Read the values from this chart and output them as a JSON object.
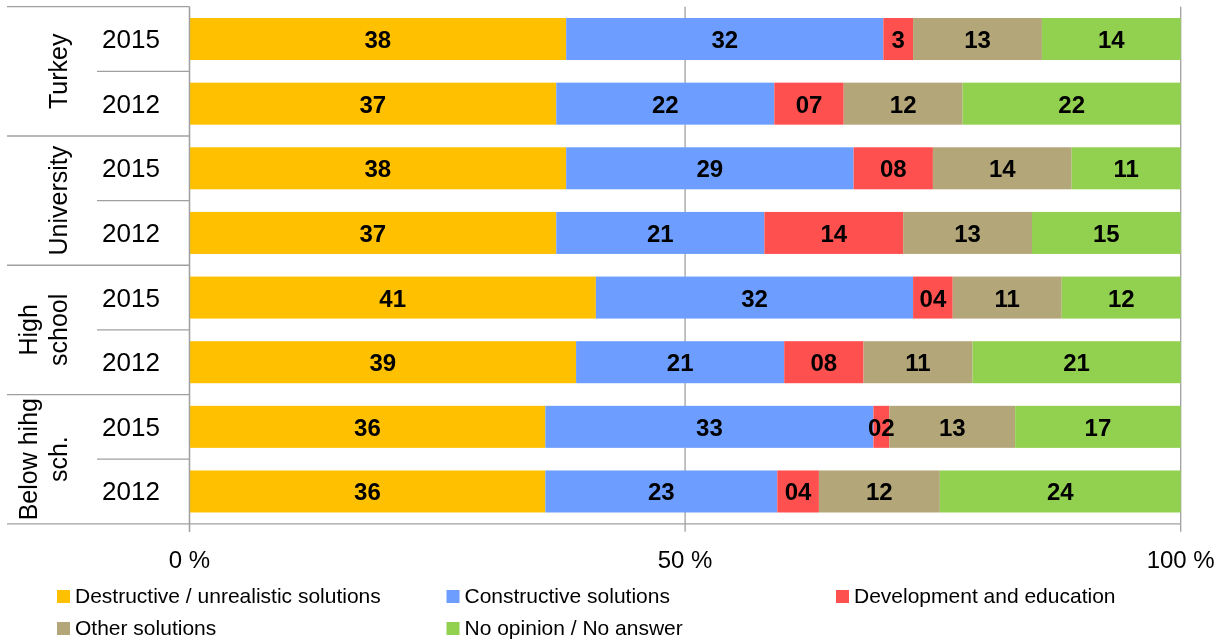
{
  "chart_data": {
    "type": "bar",
    "orientation": "horizontal",
    "stacked": true,
    "categories": [
      "2015",
      "2012",
      "2015",
      "2012",
      "2015",
      "2012",
      "2015",
      "2012"
    ],
    "annotations": [
      "Turkey",
      "University",
      "High school",
      "Below hihg sch."
    ],
    "series": [
      {
        "name": "Destructive / unrealistic solutions",
        "color": "#ffc000",
        "values": [
          38,
          37,
          38,
          37,
          41,
          39,
          35.9,
          35.9
        ],
        "value_labels": [
          "38",
          "37",
          "38",
          "37",
          "41",
          "39",
          "36",
          "36"
        ]
      },
      {
        "name": "Constructive solutions",
        "color": "#6d9eff",
        "values": [
          32,
          22,
          29,
          21,
          32,
          21,
          33.1,
          23.4
        ],
        "value_labels": [
          "32",
          "22",
          "29",
          "21",
          "32",
          "21",
          "33",
          "23"
        ]
      },
      {
        "name": "Development and education",
        "color": "#ff5050",
        "values": [
          3,
          7,
          8,
          14,
          4,
          8,
          1.6,
          4.2
        ],
        "value_labels": [
          "3",
          "07",
          "08",
          "14",
          "04",
          "08",
          "02",
          "04"
        ]
      },
      {
        "name": "Other solutions",
        "color": "#b3a678",
        "values": [
          13,
          12,
          14,
          13,
          11,
          11,
          12.7,
          12.2
        ],
        "value_labels": [
          "13",
          "12",
          "14",
          "13",
          "11",
          "11",
          "13",
          "12"
        ]
      },
      {
        "name": "No opinion / No answer",
        "color": "#92d050",
        "values": [
          14,
          22,
          11,
          15,
          12,
          21,
          16.7,
          24.3
        ],
        "value_labels": [
          "14",
          "22",
          "11",
          "15",
          "12",
          "21",
          "17",
          "24"
        ]
      }
    ],
    "xlim": [
      0,
      100
    ],
    "xticks": [
      {
        "value": 0,
        "label": "0 %"
      },
      {
        "value": 50,
        "label": "50 %"
      },
      {
        "value": 100,
        "label": "100 %"
      }
    ],
    "grid": "x",
    "legend": "bottom"
  }
}
